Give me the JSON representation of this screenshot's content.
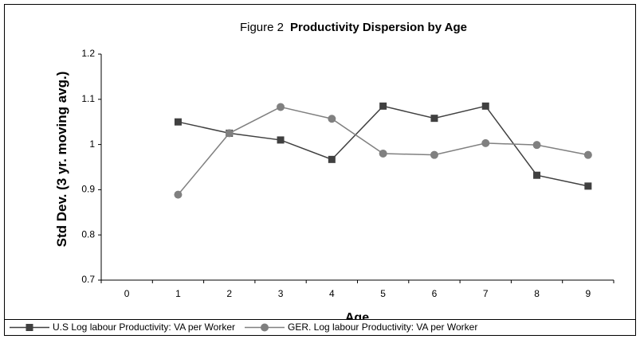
{
  "chart_data": {
    "type": "line",
    "figure_label": "Figure 2",
    "title": "Productivity Dispersion by Age",
    "x_label": "Age",
    "y_label": "Std Dev. (3 yr. moving avg.)",
    "categories": [
      "0",
      "1",
      "2",
      "3",
      "4",
      "5",
      "6",
      "7",
      "8",
      "9"
    ],
    "series": [
      {
        "name": "U.S Log labour Productivity: VA per Worker",
        "color": "#404040",
        "marker": "square",
        "values": [
          null,
          1.05,
          1.025,
          1.01,
          0.967,
          1.085,
          1.058,
          1.085,
          0.932,
          0.908
        ]
      },
      {
        "name": "GER. Log labour Productivity: VA per Worker",
        "color": "#808080",
        "marker": "circle",
        "values": [
          null,
          0.889,
          1.025,
          1.083,
          1.057,
          0.98,
          0.977,
          1.003,
          0.999,
          0.977
        ]
      }
    ],
    "ylim": [
      0.7,
      1.2
    ],
    "yticks": [
      0.7,
      0.8,
      0.9,
      1,
      1.1,
      1.2
    ],
    "grid": false
  }
}
